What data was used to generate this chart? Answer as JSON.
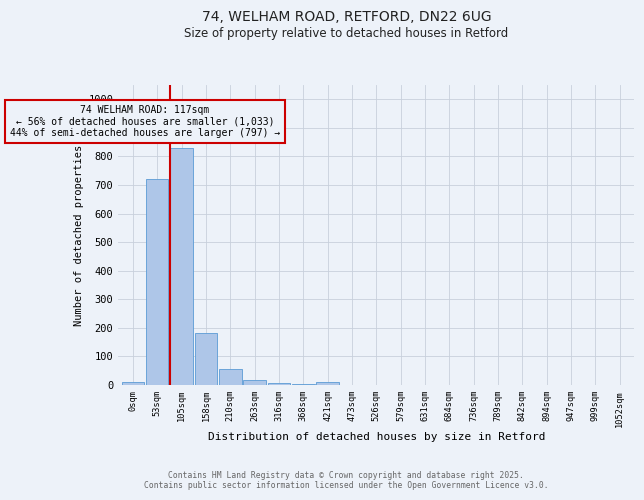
{
  "title_line1": "74, WELHAM ROAD, RETFORD, DN22 6UG",
  "title_line2": "Size of property relative to detached houses in Retford",
  "xlabel": "Distribution of detached houses by size in Retford",
  "ylabel": "Number of detached properties",
  "annotation_line1": "74 WELHAM ROAD: 117sqm",
  "annotation_line2": "← 56% of detached houses are smaller (1,033)",
  "annotation_line3": "44% of semi-detached houses are larger (797) →",
  "bar_labels": [
    "0sqm",
    "53sqm",
    "105sqm",
    "158sqm",
    "210sqm",
    "263sqm",
    "316sqm",
    "368sqm",
    "421sqm",
    "473sqm",
    "526sqm",
    "579sqm",
    "631sqm",
    "684sqm",
    "736sqm",
    "789sqm",
    "842sqm",
    "894sqm",
    "947sqm",
    "999sqm",
    "1052sqm"
  ],
  "bar_values": [
    12,
    720,
    830,
    182,
    57,
    18,
    8,
    5,
    10,
    0,
    0,
    0,
    0,
    0,
    0,
    0,
    0,
    0,
    0,
    0,
    0
  ],
  "bar_color": "#aec6e8",
  "bar_edgecolor": "#5b9bd5",
  "red_line_x": 2.0,
  "red_line_color": "#cc0000",
  "ylim": [
    0,
    1050
  ],
  "yticks": [
    0,
    100,
    200,
    300,
    400,
    500,
    600,
    700,
    800,
    900,
    1000
  ],
  "annotation_box_color": "#cc0000",
  "grid_color": "#c8d0dc",
  "background_color": "#edf2f9",
  "footer_line1": "Contains HM Land Registry data © Crown copyright and database right 2025.",
  "footer_line2": "Contains public sector information licensed under the Open Government Licence v3.0."
}
